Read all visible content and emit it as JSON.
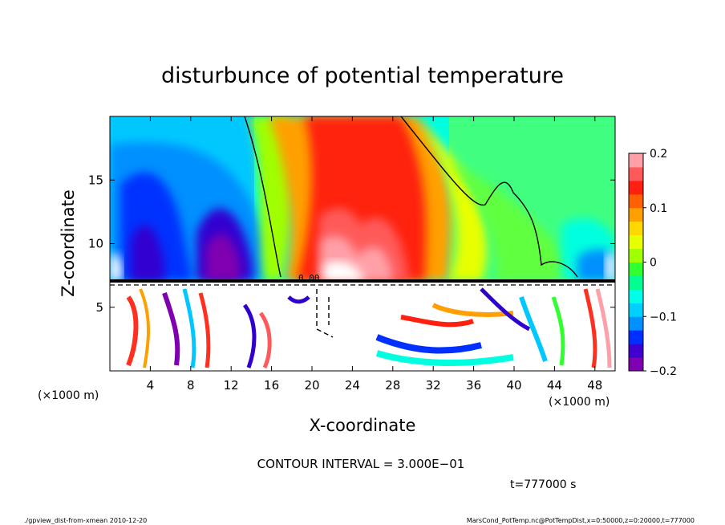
{
  "chart_data": {
    "type": "heatmap",
    "title": "disturbunce of potential temperature",
    "xlabel": "X-coordinate",
    "ylabel": "Z-coordinate",
    "x_unit_left": "(×1000 m)",
    "x_unit_right": "(×1000 m)",
    "xlim": [
      0,
      50
    ],
    "ylim": [
      0,
      20
    ],
    "x_ticks": [
      4,
      8,
      12,
      16,
      20,
      24,
      28,
      32,
      36,
      40,
      44,
      48
    ],
    "x_tick_labels": [
      "4",
      "8",
      "12",
      "16",
      "20",
      "24",
      "28",
      "32",
      "36",
      "40",
      "44",
      "48"
    ],
    "y_ticks": [
      5,
      10,
      15
    ],
    "y_tick_labels": [
      "5",
      "10",
      "15"
    ],
    "colorbar": {
      "range": [
        -0.2,
        0.2
      ],
      "ticks": [
        0.2,
        0.1,
        0,
        -0.1,
        -0.2
      ],
      "tick_labels": [
        "0.2",
        "0.1",
        "0",
        "−0.1",
        "−0.2"
      ],
      "colors": [
        "#7f00b0",
        "#4000d0",
        "#0030ff",
        "#0090ff",
        "#00d0ff",
        "#00ffe8",
        "#00ff90",
        "#30ff30",
        "#a0ff00",
        "#e8ff00",
        "#ffd800",
        "#ffa000",
        "#ff6000",
        "#ff2010",
        "#ff5a5a",
        "#ffa0a8"
      ]
    },
    "contour_label": "0.00",
    "contour_interval_text": "CONTOUR INTERVAL = 3.000E−01",
    "time_text": "t=777000 s",
    "footer_left": "./gpview_dist-from-xmean  2010-12-20",
    "footer_right": "MarsCond_PotTemp.nc@PotTempDist,x=0:50000,z=0:20000,t=777000"
  }
}
